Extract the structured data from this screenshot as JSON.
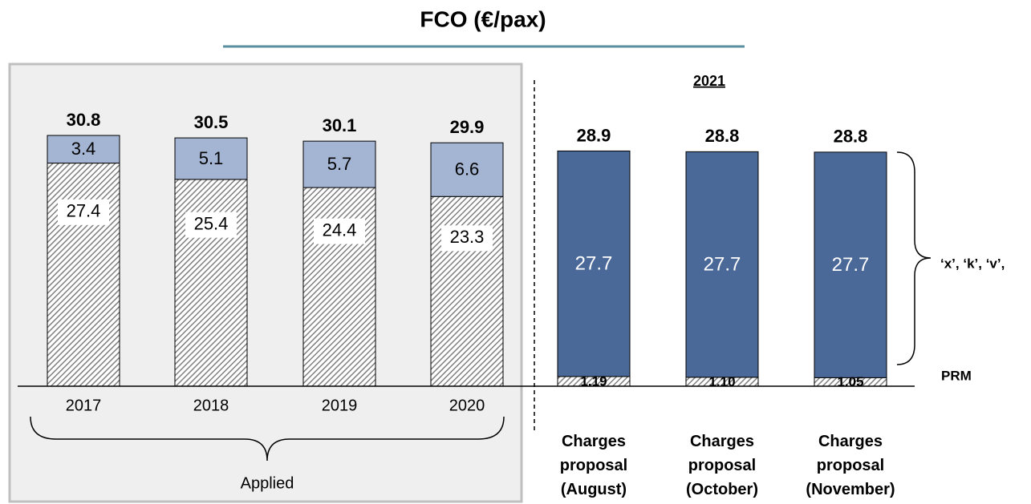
{
  "chart_data": {
    "type": "stacked_bar",
    "title": "FCO (€/pax)",
    "categories": [
      "2017",
      "2018",
      "2019",
      "2020",
      "Charges proposal (August)",
      "Charges proposal (October)",
      "Charges proposal (November)"
    ],
    "series": [
      {
        "name": "PRM",
        "color": "#7f7f7f",
        "hatch": true,
        "values": [
          27.4,
          25.4,
          24.4,
          23.3,
          1.19,
          1.1,
          1.05
        ],
        "value_labels": [
          "27.4",
          "25.4",
          "24.4",
          "23.3",
          "1.19",
          "1.10",
          "1.05"
        ]
      },
      {
        "name": "‘x’, ‘k’, ‘v’,",
        "colors": [
          "#a3b5d3",
          "#a3b5d3",
          "#a3b5d3",
          "#a3b5d3",
          "#4a6898",
          "#4a6898",
          "#4a6898"
        ],
        "values": [
          3.4,
          5.1,
          5.7,
          6.6,
          27.7,
          27.7,
          27.7
        ]
      }
    ],
    "totals": [
      30.8,
      30.5,
      30.1,
      29.9,
      28.9,
      28.8,
      28.8
    ],
    "ylim": [
      0,
      31
    ],
    "annotations": {
      "applied": "Applied",
      "year": "2021"
    }
  }
}
